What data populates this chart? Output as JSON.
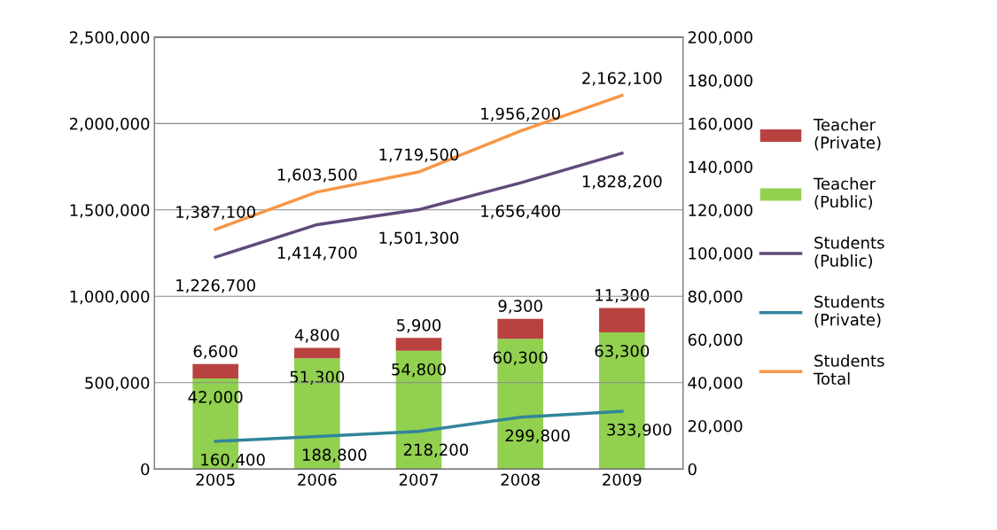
{
  "chart_data": {
    "type": "bar",
    "stacked": true,
    "categories": [
      "2005",
      "2006",
      "2007",
      "2008",
      "2009"
    ],
    "series": [
      {
        "name": "Teacher (Public)",
        "color": "#92d050",
        "axis": "y2",
        "values": [
          42000,
          51300,
          54800,
          60300,
          63300
        ],
        "value_labels": [
          "42,000",
          "51,300",
          "54,800",
          "60,300",
          "63,300"
        ]
      },
      {
        "name": "Teacher (Private)",
        "color": "#b8423f",
        "axis": "y2",
        "values": [
          6600,
          4800,
          5900,
          9300,
          11300
        ],
        "value_labels": [
          "6,600",
          "4,800",
          "5,900",
          "9,300",
          "11,300"
        ]
      },
      {
        "name": "Students (Public)",
        "type": "line",
        "color": "#604a7b",
        "values": [
          1226700,
          1414700,
          1501300,
          1656400,
          1828200
        ],
        "value_labels": [
          "1,226,700",
          "1,414,700",
          "1,501,300",
          "1,656,400",
          "1,828,200"
        ]
      },
      {
        "name": "Students (Private)",
        "type": "line",
        "color": "#31859c",
        "values": [
          160400,
          188800,
          218200,
          299800,
          333900
        ],
        "value_labels": [
          "160,400",
          "188,800",
          "218,200",
          "299,800",
          "333,900"
        ]
      },
      {
        "name": "Students Total",
        "type": "line",
        "color": "#f79646",
        "values": [
          1387100,
          1603500,
          1719500,
          1956200,
          2162100
        ],
        "value_labels": [
          "1,387,100",
          "1,603,500",
          "1,719,500",
          "1,956,200",
          "2,162,100"
        ]
      }
    ],
    "ylim": [
      0,
      2500000
    ],
    "yticks": [
      0,
      {
        "value": 500000,
        "label": "500,000"
      },
      {
        "value": 1000000,
        "label": "1,000,000"
      },
      {
        "value": 1500000,
        "label": "1,500,000"
      },
      {
        "value": 2000000,
        "label": "2,000,000"
      },
      {
        "value": 2500000,
        "label": "2,500,000"
      }
    ],
    "y2lim": [
      0,
      200000
    ],
    "y2ticks": [
      0,
      {
        "value": 20000,
        "label": "20,000"
      },
      {
        "value": 40000,
        "label": "40,000"
      },
      {
        "value": 60000,
        "label": "60,000"
      },
      {
        "value": 80000,
        "label": "80,000"
      },
      {
        "value": 100000,
        "label": "100,000"
      },
      {
        "value": 120000,
        "label": "120,000"
      },
      {
        "value": 140000,
        "label": "140,000"
      },
      {
        "value": 160000,
        "label": "160,000"
      },
      {
        "value": 180000,
        "label": "180,000"
      },
      {
        "value": 200000,
        "label": "200,000"
      }
    ],
    "grid": "y",
    "legend": "right"
  }
}
